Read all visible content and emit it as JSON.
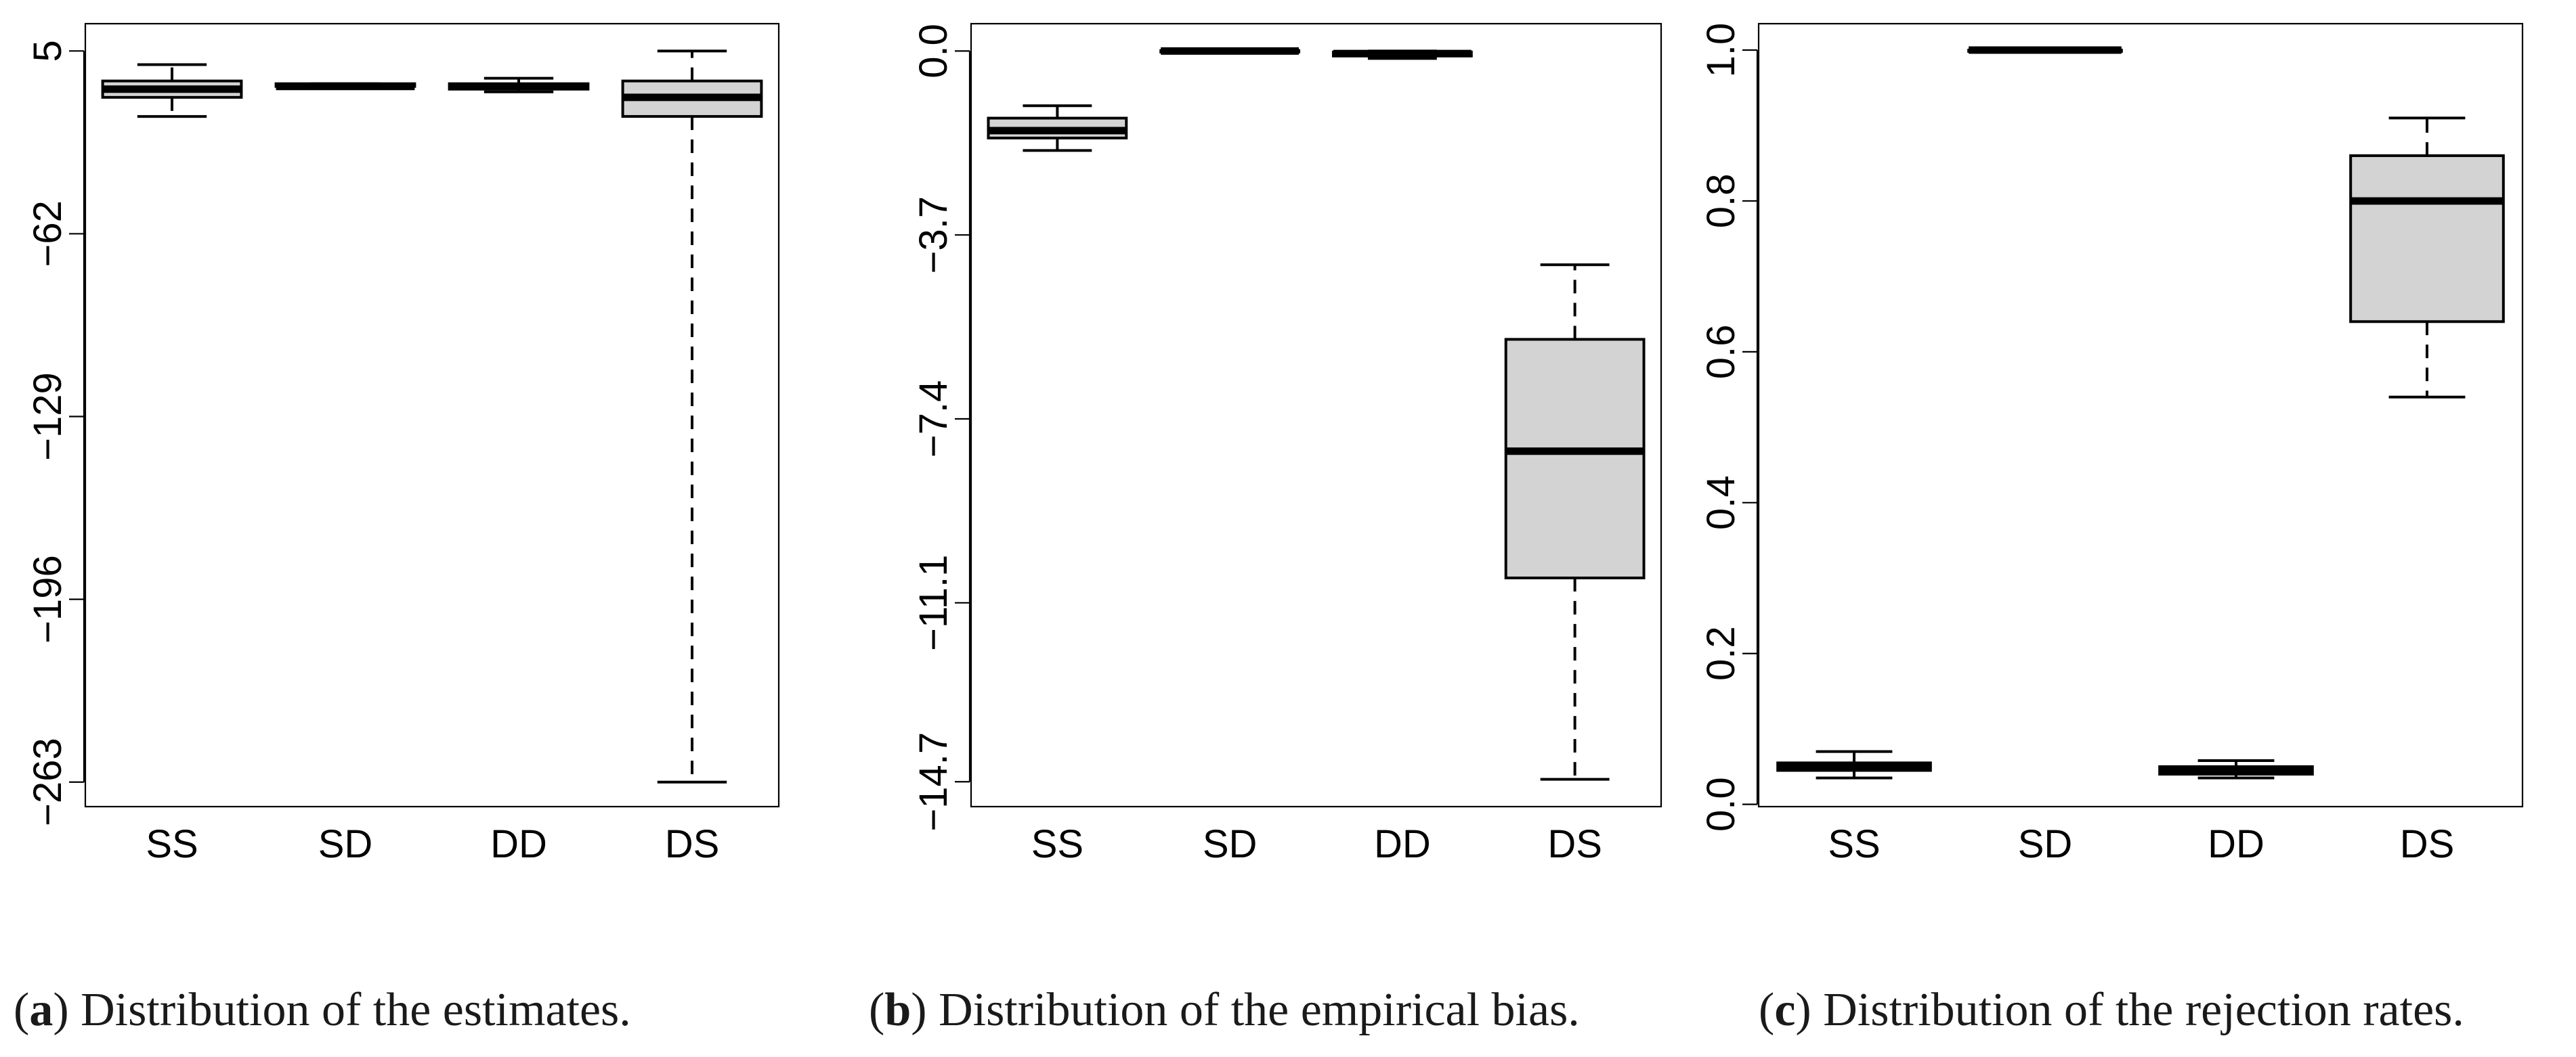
{
  "chart_data": [
    {
      "type": "boxplot",
      "panel": "a",
      "caption_letter": "a",
      "caption_text": "Distribution of the estimates.",
      "categories": [
        "SS",
        "SD",
        "DD",
        "DS"
      ],
      "y_ticks": [
        5,
        -62,
        -129,
        -196,
        -263
      ],
      "y_tick_labels": [
        "5",
        "−62",
        "−129",
        "−196",
        "−263"
      ],
      "ylim": [
        -272,
        15
      ],
      "boxes": [
        {
          "name": "SS",
          "whisker_low": -19,
          "q1": -12,
          "median": -9,
          "q3": -6,
          "whisker_high": 0
        },
        {
          "name": "SD",
          "whisker_low": -8.5,
          "q1": -8,
          "median": -8,
          "q3": -7,
          "whisker_high": -7
        },
        {
          "name": "DD",
          "whisker_low": -10,
          "q1": -9,
          "median": -8,
          "q3": -7,
          "whisker_high": -5
        },
        {
          "name": "DS",
          "whisker_low": -263,
          "q1": -19,
          "median": -12,
          "q3": -6,
          "whisker_high": 5
        }
      ]
    },
    {
      "type": "boxplot",
      "panel": "b",
      "caption_letter": "b",
      "caption_text": "Distribution of the empirical bias.",
      "categories": [
        "SS",
        "SD",
        "DD",
        "DS"
      ],
      "y_ticks": [
        0.0,
        -3.7,
        -7.4,
        -11.1,
        -14.7
      ],
      "y_tick_labels": [
        "0.0",
        "−3.7",
        "−7.4",
        "−11.1",
        "−14.7"
      ],
      "ylim": [
        -15.2,
        0.55
      ],
      "boxes": [
        {
          "name": "SS",
          "whisker_low": -2.0,
          "q1": -1.75,
          "median": -1.6,
          "q3": -1.35,
          "whisker_high": -1.1
        },
        {
          "name": "SD",
          "whisker_low": -0.03,
          "q1": -0.02,
          "median": 0.0,
          "q3": 0.01,
          "whisker_high": 0.02
        },
        {
          "name": "DD",
          "whisker_low": -0.15,
          "q1": -0.1,
          "median": -0.05,
          "q3": -0.02,
          "whisker_high": 0.0
        },
        {
          "name": "DS",
          "whisker_low": -14.65,
          "q1": -10.6,
          "median": -8.05,
          "q3": -5.8,
          "whisker_high": -4.3
        }
      ]
    },
    {
      "type": "boxplot",
      "panel": "c",
      "caption_letter": "c",
      "caption_text": "Distribution of the rejection rates.",
      "categories": [
        "SS",
        "SD",
        "DD",
        "DS"
      ],
      "y_ticks": [
        0.0,
        0.2,
        0.4,
        0.6,
        0.8,
        1.0
      ],
      "y_tick_labels": [
        "0.0",
        "0.2",
        "0.4",
        "0.6",
        "0.8",
        "1.0"
      ],
      "ylim": [
        -0.003,
        1.035
      ],
      "boxes": [
        {
          "name": "SS",
          "whisker_low": 0.035,
          "q1": 0.045,
          "median": 0.05,
          "q3": 0.055,
          "whisker_high": 0.07
        },
        {
          "name": "SD",
          "whisker_low": 0.998,
          "q1": 0.999,
          "median": 1.0,
          "q3": 1.0,
          "whisker_high": 1.0
        },
        {
          "name": "DD",
          "whisker_low": 0.035,
          "q1": 0.04,
          "median": 0.045,
          "q3": 0.05,
          "whisker_high": 0.058
        },
        {
          "name": "DS",
          "whisker_low": 0.54,
          "q1": 0.64,
          "median": 0.8,
          "q3": 0.86,
          "whisker_high": 0.91
        }
      ]
    }
  ],
  "colors": {
    "box_fill": "#d3d3d3",
    "stroke": "#000000",
    "background": "#ffffff"
  }
}
